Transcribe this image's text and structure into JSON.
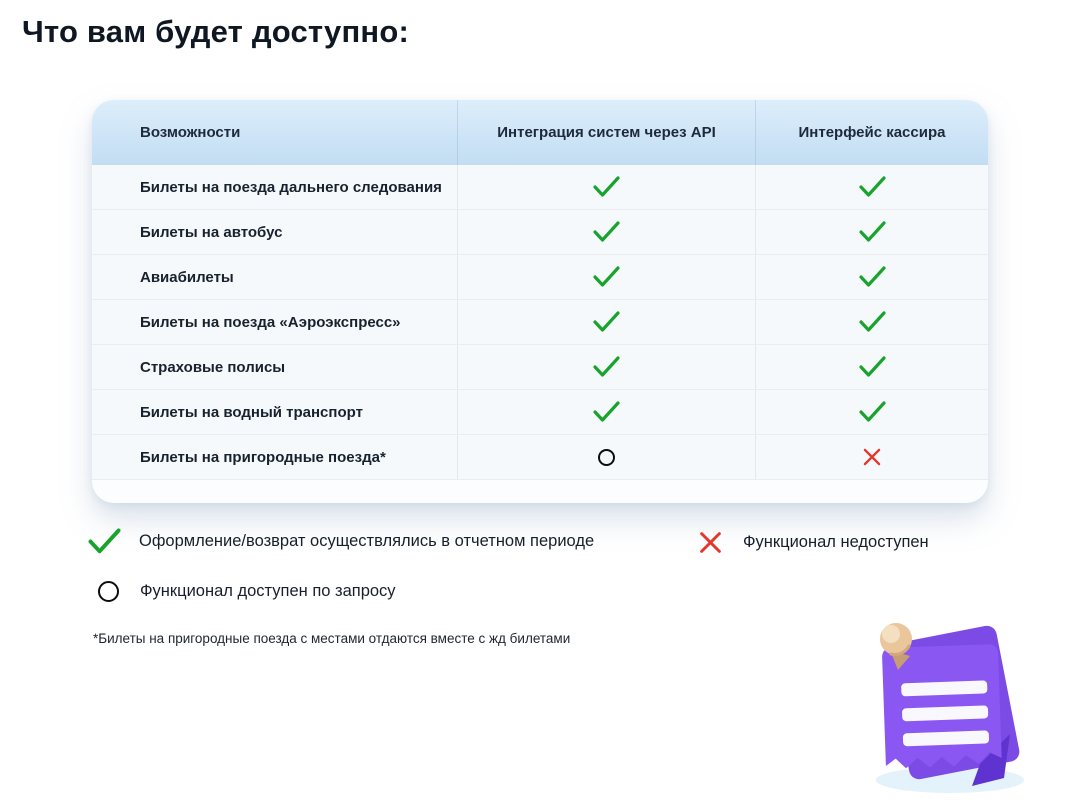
{
  "page": {
    "title": "Что вам будет доступно:"
  },
  "table": {
    "columns": [
      "Возможности",
      "Интеграция систем через API",
      "Интерфейс кассира"
    ],
    "rows": [
      {
        "label": "Билеты на поезда дальнего следования",
        "api": "check",
        "cashier": "check"
      },
      {
        "label": "Билеты на автобус",
        "api": "check",
        "cashier": "check"
      },
      {
        "label": "Авиабилеты",
        "api": "check",
        "cashier": "check"
      },
      {
        "label": "Билеты на поезда «Аэроэкспресс»",
        "api": "check",
        "cashier": "check"
      },
      {
        "label": "Страховые полисы",
        "api": "check",
        "cashier": "check"
      },
      {
        "label": "Билеты на водный транспорт",
        "api": "check",
        "cashier": "check"
      },
      {
        "label": "Билеты на пригородные поезда*",
        "api": "circle",
        "cashier": "cross"
      }
    ]
  },
  "legend": [
    {
      "icon": "check",
      "label": "Оформление/возврат осуществлялись в отчетном периоде"
    },
    {
      "icon": "cross",
      "label": "Функционал недоступен"
    },
    {
      "icon": "circle",
      "label": "Функционал доступен по запросу"
    }
  ],
  "footnote": "*Билеты на пригородные поезда с местами отдаются вместе с жд билетами",
  "icons": {
    "check-icon": "✓",
    "cross-icon": "✕",
    "circle-icon": "○",
    "pinned-note-illustration": "purple note sheets with push pin and three white text lines"
  },
  "colors": {
    "check_green": "#18a42c",
    "cross_red": "#e6352a",
    "circle_black": "#0d0d0d",
    "header_blue_top": "#ddeefb",
    "header_blue_bottom": "#c2ddf3",
    "purple_main": "#8a57f2",
    "purple_back": "#7c4ae5",
    "purple_dark": "#5e33cf",
    "pin_beige": "#e9c69c",
    "shadow_blue": "#def0fa"
  }
}
